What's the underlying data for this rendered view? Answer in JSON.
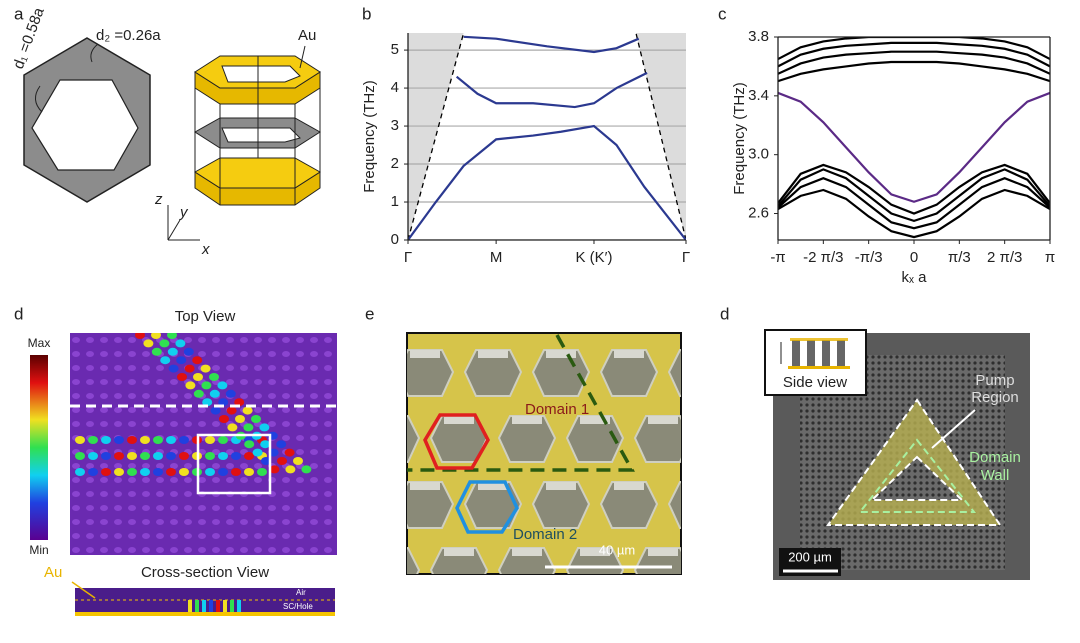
{
  "panels": {
    "a": {
      "label": "a",
      "d1": "d₁ =0.58a",
      "d2": "d₂ =0.26a",
      "au": "Au",
      "z": "z",
      "y": "y",
      "x": "x"
    },
    "b": {
      "label": "b"
    },
    "c": {
      "label": "c"
    },
    "d": {
      "label": "d",
      "title": "Top View",
      "max": "Max",
      "min": "Min",
      "au": "Au",
      "cross_title": "Cross-section View",
      "air": "Air",
      "hole": "SC/Hole"
    },
    "e": {
      "label": "e",
      "domain1": "Domain 1",
      "domain2": "Domain 2",
      "scale": "40 µm"
    },
    "f": {
      "label": "d",
      "inset": "Side view",
      "pump": [
        "Pump",
        "Region"
      ],
      "wall": [
        "Domain",
        "Wall"
      ],
      "scale": "200 µm"
    }
  },
  "chart_data": [
    {
      "type": "line",
      "ylabel": "Frequency (THz)",
      "xlim": [
        0,
        1
      ],
      "xticks": [
        {
          "value": 0,
          "label": "Γ"
        },
        {
          "value": 0.317,
          "label": "M"
        },
        {
          "value": 0.669,
          "label": "K (K′)"
        },
        {
          "value": 1,
          "label": "Γ"
        }
      ],
      "ylim": [
        0,
        5.45
      ],
      "yticks": [
        0,
        1,
        2,
        3,
        4,
        5
      ],
      "grid": true,
      "series": [
        {
          "color": "#000000",
          "dash": true,
          "shade": "#dcdcdc",
          "x": [
            0,
            0.2
          ],
          "values": [
            0,
            5.45
          ]
        },
        {
          "color": "#000000",
          "dash": true,
          "shade": "#dcdcdc",
          "x": [
            1,
            0.82
          ],
          "values": [
            0,
            5.45
          ]
        },
        {
          "color": "#2b3990",
          "x": [
            0,
            0.1,
            0.2,
            0.317,
            0.45,
            0.55,
            0.669,
            0.75,
            0.85,
            1
          ],
          "values": [
            0,
            1.0,
            1.95,
            2.65,
            2.75,
            2.85,
            3.0,
            2.5,
            1.4,
            0
          ]
        },
        {
          "color": "#2b3990",
          "x": [
            0.175,
            0.25,
            0.317,
            0.45,
            0.6,
            0.669,
            0.75,
            0.86
          ],
          "values": [
            4.3,
            3.85,
            3.6,
            3.6,
            3.5,
            3.6,
            4.0,
            4.4
          ]
        },
        {
          "color": "#2b3990",
          "x": [
            0.2,
            0.317,
            0.5,
            0.669,
            0.75,
            0.83
          ],
          "values": [
            5.35,
            5.3,
            5.1,
            4.95,
            5.05,
            5.3
          ]
        }
      ]
    },
    {
      "type": "line",
      "ylabel": "Frequency (THz)",
      "xlabel": "kₓ a",
      "box": true,
      "x": [
        -3.1416,
        -2.618,
        -2.0944,
        -1.5708,
        -1.0472,
        -0.5236,
        0,
        0.5236,
        1.0472,
        1.5708,
        2.0944,
        2.618,
        3.1416
      ],
      "xlim": [
        -3.1416,
        3.1416
      ],
      "xticks": [
        {
          "value": -3.1416,
          "label": "-π"
        },
        {
          "value": -2.0944,
          "label": "-2 π/3"
        },
        {
          "value": -1.0472,
          "label": "-π/3"
        },
        0,
        {
          "value": 1.0472,
          "label": "π/3"
        },
        {
          "value": 2.0944,
          "label": "2 π/3"
        },
        {
          "value": 3.1416,
          "label": "π"
        }
      ],
      "ylim": [
        2.42,
        3.8
      ],
      "yticks": [
        2.6,
        {
          "value": 3,
          "label": "3.0"
        },
        3.4,
        3.8
      ],
      "series": [
        {
          "color": "#000000",
          "values": [
            2.67,
            2.87,
            2.93,
            2.88,
            2.78,
            2.66,
            2.6,
            2.66,
            2.78,
            2.88,
            2.93,
            2.87,
            2.67
          ]
        },
        {
          "color": "#000000",
          "values": [
            2.65,
            2.83,
            2.9,
            2.84,
            2.72,
            2.6,
            2.55,
            2.6,
            2.72,
            2.84,
            2.9,
            2.83,
            2.65
          ]
        },
        {
          "color": "#000000",
          "values": [
            2.64,
            2.78,
            2.84,
            2.78,
            2.66,
            2.54,
            2.5,
            2.54,
            2.66,
            2.78,
            2.84,
            2.78,
            2.64
          ]
        },
        {
          "color": "#000000",
          "values": [
            2.63,
            2.72,
            2.76,
            2.7,
            2.58,
            2.48,
            2.44,
            2.48,
            2.58,
            2.7,
            2.76,
            2.72,
            2.63
          ]
        },
        {
          "color": "#000000",
          "values": [
            3.5,
            3.55,
            3.58,
            3.6,
            3.62,
            3.63,
            3.63,
            3.63,
            3.62,
            3.6,
            3.58,
            3.55,
            3.5
          ]
        },
        {
          "color": "#000000",
          "values": [
            3.55,
            3.62,
            3.66,
            3.68,
            3.69,
            3.7,
            3.7,
            3.7,
            3.69,
            3.68,
            3.66,
            3.62,
            3.55
          ]
        },
        {
          "color": "#000000",
          "values": [
            3.6,
            3.68,
            3.72,
            3.74,
            3.75,
            3.76,
            3.76,
            3.76,
            3.75,
            3.74,
            3.72,
            3.68,
            3.6
          ]
        },
        {
          "color": "#000000",
          "values": [
            3.65,
            3.73,
            3.77,
            3.79,
            3.8,
            3.8,
            3.8,
            3.8,
            3.8,
            3.79,
            3.77,
            3.73,
            3.65
          ]
        },
        {
          "color": "#5b2a86",
          "values": [
            3.42,
            3.36,
            3.22,
            3.05,
            2.88,
            2.73,
            2.68,
            2.73,
            2.88,
            3.05,
            3.22,
            3.36,
            3.42
          ]
        }
      ]
    }
  ]
}
